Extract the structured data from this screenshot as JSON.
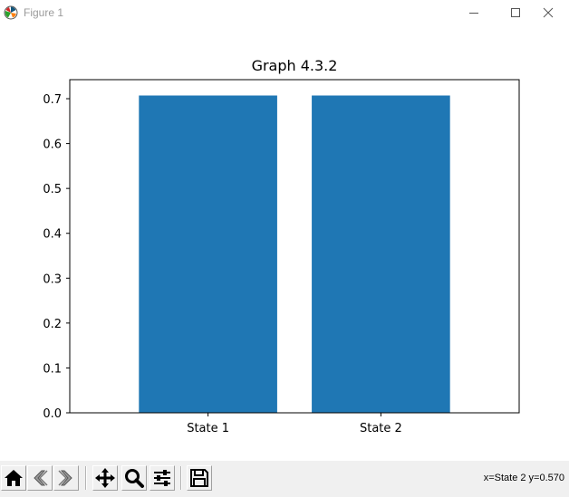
{
  "window": {
    "title": "Figure 1",
    "controls": [
      "minimize",
      "maximize",
      "close"
    ]
  },
  "toolbar": {
    "tools": [
      "home-icon",
      "back-icon",
      "forward-icon",
      "pan-icon",
      "zoom-icon",
      "configure-icon",
      "save-icon"
    ],
    "coords_readout": "x=State 2 y=0.570"
  },
  "chart_data": {
    "type": "bar",
    "title": "Graph 4.3.2",
    "categories": [
      "State 1",
      "State 2"
    ],
    "values": [
      0.7071,
      0.7071
    ],
    "xlabel": "",
    "ylabel": "",
    "ylim": [
      0,
      0.7424
    ],
    "yticks": [
      0.0,
      0.1,
      0.2,
      0.3,
      0.4,
      0.5,
      0.6,
      0.7
    ],
    "ytick_labels": [
      "0.0",
      "0.1",
      "0.2",
      "0.3",
      "0.4",
      "0.5",
      "0.6",
      "0.7"
    ],
    "bar_color": "#1f77b4",
    "grid": false,
    "legend": "none"
  }
}
